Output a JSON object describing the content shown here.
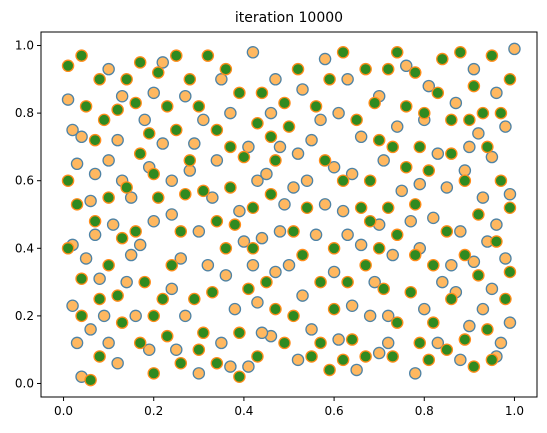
{
  "chart_data": {
    "type": "scatter",
    "title": "iteration 10000",
    "xlabel": "",
    "ylabel": "",
    "xlim": [
      -0.05,
      1.05
    ],
    "ylim": [
      -0.04,
      1.04
    ],
    "xticks": [
      "0.0",
      "0.2",
      "0.4",
      "0.6",
      "0.8",
      "1.0"
    ],
    "xtick_values": [
      0.0,
      0.2,
      0.4,
      0.6,
      0.8,
      1.0
    ],
    "yticks": [
      "0.0",
      "0.2",
      "0.4",
      "0.6",
      "0.8",
      "1.0"
    ],
    "ytick_values": [
      0.0,
      0.2,
      0.4,
      0.6,
      0.8,
      1.0
    ],
    "grid": false,
    "legend": "none",
    "colors": {
      "orange_fill": "#ffb860",
      "orange_edge": "#4f83a5",
      "green_fill": "#2f8a20",
      "green_edge": "#ff8c1a"
    },
    "series": [
      {
        "values": [
          [
            0.01,
            0.84
          ],
          [
            0.02,
            0.75
          ],
          [
            0.04,
            0.73
          ],
          [
            0.03,
            0.65
          ],
          [
            0.07,
            0.62
          ],
          [
            0.1,
            0.66
          ],
          [
            0.13,
            0.6
          ],
          [
            0.06,
            0.54
          ],
          [
            0.11,
            0.47
          ],
          [
            0.02,
            0.41
          ],
          [
            0.05,
            0.37
          ],
          [
            0.08,
            0.31
          ],
          [
            0.02,
            0.23
          ],
          [
            0.06,
            0.16
          ],
          [
            0.1,
            0.12
          ],
          [
            0.04,
            0.02
          ],
          [
            0.12,
            0.06
          ],
          [
            0.16,
            0.2
          ],
          [
            0.19,
            0.1
          ],
          [
            0.14,
            0.3
          ],
          [
            0.17,
            0.41
          ],
          [
            0.2,
            0.48
          ],
          [
            0.15,
            0.55
          ],
          [
            0.19,
            0.64
          ],
          [
            0.24,
            0.6
          ],
          [
            0.22,
            0.71
          ],
          [
            0.18,
            0.78
          ],
          [
            0.13,
            0.85
          ],
          [
            0.1,
            0.93
          ],
          [
            0.22,
            0.95
          ],
          [
            0.27,
            0.85
          ],
          [
            0.31,
            0.78
          ],
          [
            0.28,
            0.63
          ],
          [
            0.33,
            0.55
          ],
          [
            0.3,
            0.45
          ],
          [
            0.26,
            0.37
          ],
          [
            0.24,
            0.28
          ],
          [
            0.27,
            0.2
          ],
          [
            0.25,
            0.1
          ],
          [
            0.3,
            0.03
          ],
          [
            0.35,
            0.12
          ],
          [
            0.38,
            0.22
          ],
          [
            0.36,
            0.32
          ],
          [
            0.4,
            0.42
          ],
          [
            0.39,
            0.51
          ],
          [
            0.43,
            0.6
          ],
          [
            0.41,
            0.7
          ],
          [
            0.37,
            0.8
          ],
          [
            0.35,
            0.9
          ],
          [
            0.42,
            0.98
          ],
          [
            0.47,
            0.9
          ],
          [
            0.46,
            0.8
          ],
          [
            0.48,
            0.7
          ],
          [
            0.45,
            0.62
          ],
          [
            0.49,
            0.53
          ],
          [
            0.44,
            0.43
          ],
          [
            0.47,
            0.33
          ],
          [
            0.43,
            0.24
          ],
          [
            0.46,
            0.14
          ],
          [
            0.41,
            0.05
          ],
          [
            0.52,
            0.07
          ],
          [
            0.55,
            0.16
          ],
          [
            0.53,
            0.26
          ],
          [
            0.5,
            0.35
          ],
          [
            0.56,
            0.44
          ],
          [
            0.58,
            0.53
          ],
          [
            0.54,
            0.6
          ],
          [
            0.52,
            0.68
          ],
          [
            0.57,
            0.78
          ],
          [
            0.53,
            0.87
          ],
          [
            0.58,
            0.96
          ],
          [
            0.63,
            0.9
          ],
          [
            0.61,
            0.8
          ],
          [
            0.66,
            0.73
          ],
          [
            0.64,
            0.62
          ],
          [
            0.62,
            0.51
          ],
          [
            0.66,
            0.41
          ],
          [
            0.6,
            0.33
          ],
          [
            0.64,
            0.23
          ],
          [
            0.61,
            0.13
          ],
          [
            0.65,
            0.04
          ],
          [
            0.7,
            0.09
          ],
          [
            0.72,
            0.2
          ],
          [
            0.69,
            0.3
          ],
          [
            0.73,
            0.38
          ],
          [
            0.7,
            0.47
          ],
          [
            0.75,
            0.57
          ],
          [
            0.71,
            0.66
          ],
          [
            0.74,
            0.76
          ],
          [
            0.7,
            0.85
          ],
          [
            0.76,
            0.94
          ],
          [
            0.81,
            0.88
          ],
          [
            0.8,
            0.78
          ],
          [
            0.83,
            0.68
          ],
          [
            0.79,
            0.59
          ],
          [
            0.82,
            0.49
          ],
          [
            0.79,
            0.4
          ],
          [
            0.84,
            0.3
          ],
          [
            0.8,
            0.22
          ],
          [
            0.83,
            0.12
          ],
          [
            0.78,
            0.03
          ],
          [
            0.88,
            0.07
          ],
          [
            0.9,
            0.17
          ],
          [
            0.87,
            0.27
          ],
          [
            0.91,
            0.36
          ],
          [
            0.88,
            0.45
          ],
          [
            0.93,
            0.55
          ],
          [
            0.89,
            0.63
          ],
          [
            0.92,
            0.74
          ],
          [
            0.87,
            0.83
          ],
          [
            0.91,
            0.93
          ],
          [
            0.96,
            0.86
          ],
          [
            0.98,
            0.76
          ],
          [
            0.95,
            0.67
          ],
          [
            0.99,
            0.56
          ],
          [
            0.96,
            0.47
          ],
          [
            0.98,
            0.37
          ],
          [
            0.95,
            0.28
          ],
          [
            0.99,
            0.18
          ],
          [
            0.96,
            0.08
          ],
          [
            1.0,
            0.99
          ],
          [
            0.03,
            0.12
          ],
          [
            0.09,
            0.2
          ],
          [
            0.07,
            0.44
          ],
          [
            0.15,
            0.38
          ],
          [
            0.12,
            0.72
          ],
          [
            0.2,
            0.86
          ],
          [
            0.24,
            0.5
          ],
          [
            0.29,
            0.71
          ],
          [
            0.34,
            0.66
          ],
          [
            0.32,
            0.35
          ],
          [
            0.37,
            0.05
          ],
          [
            0.44,
            0.15
          ],
          [
            0.42,
            0.35
          ],
          [
            0.48,
            0.45
          ],
          [
            0.51,
            0.58
          ],
          [
            0.55,
            0.72
          ],
          [
            0.6,
            0.64
          ],
          [
            0.63,
            0.44
          ],
          [
            0.68,
            0.2
          ],
          [
            0.72,
            0.12
          ],
          [
            0.77,
            0.48
          ],
          [
            0.85,
            0.58
          ],
          [
            0.9,
            0.7
          ],
          [
            0.94,
            0.42
          ],
          [
            0.86,
            0.35
          ],
          [
            0.93,
            0.22
          ],
          [
            0.97,
            0.12
          ]
        ]
      },
      {
        "values": [
          [
            0.01,
            0.94
          ],
          [
            0.04,
            0.97
          ],
          [
            0.08,
            0.9
          ],
          [
            0.05,
            0.82
          ],
          [
            0.09,
            0.78
          ],
          [
            0.14,
            0.9
          ],
          [
            0.17,
            0.95
          ],
          [
            0.21,
            0.92
          ],
          [
            0.25,
            0.97
          ],
          [
            0.23,
            0.82
          ],
          [
            0.19,
            0.74
          ],
          [
            0.17,
            0.68
          ],
          [
            0.14,
            0.58
          ],
          [
            0.01,
            0.6
          ],
          [
            0.03,
            0.53
          ],
          [
            0.07,
            0.48
          ],
          [
            0.01,
            0.4
          ],
          [
            0.04,
            0.31
          ],
          [
            0.08,
            0.25
          ],
          [
            0.1,
            0.35
          ],
          [
            0.13,
            0.43
          ],
          [
            0.18,
            0.3
          ],
          [
            0.2,
            0.2
          ],
          [
            0.17,
            0.12
          ],
          [
            0.13,
            0.18
          ],
          [
            0.08,
            0.08
          ],
          [
            0.2,
            0.03
          ],
          [
            0.23,
            0.14
          ],
          [
            0.29,
            0.25
          ],
          [
            0.26,
            0.45
          ],
          [
            0.21,
            0.55
          ],
          [
            0.28,
            0.66
          ],
          [
            0.31,
            0.57
          ],
          [
            0.34,
            0.48
          ],
          [
            0.36,
            0.4
          ],
          [
            0.33,
            0.27
          ],
          [
            0.31,
            0.15
          ],
          [
            0.34,
            0.06
          ],
          [
            0.39,
            0.15
          ],
          [
            0.41,
            0.28
          ],
          [
            0.37,
            0.58
          ],
          [
            0.4,
            0.67
          ],
          [
            0.43,
            0.77
          ],
          [
            0.39,
            0.86
          ],
          [
            0.32,
            0.97
          ],
          [
            0.36,
            0.93
          ],
          [
            0.44,
            0.86
          ],
          [
            0.49,
            0.83
          ],
          [
            0.52,
            0.93
          ],
          [
            0.56,
            0.82
          ],
          [
            0.59,
            0.9
          ],
          [
            0.62,
            0.98
          ],
          [
            0.67,
            0.93
          ],
          [
            0.69,
            0.83
          ],
          [
            0.72,
            0.93
          ],
          [
            0.74,
            0.98
          ],
          [
            0.78,
            0.92
          ],
          [
            0.84,
            0.96
          ],
          [
            0.88,
            0.98
          ],
          [
            0.91,
            0.88
          ],
          [
            0.95,
            0.97
          ],
          [
            0.99,
            0.9
          ],
          [
            0.97,
            0.8
          ],
          [
            0.93,
            0.8
          ],
          [
            0.86,
            0.78
          ],
          [
            0.83,
            0.86
          ],
          [
            0.79,
            0.7
          ],
          [
            0.76,
            0.64
          ],
          [
            0.73,
            0.7
          ],
          [
            0.68,
            0.6
          ],
          [
            0.66,
            0.52
          ],
          [
            0.7,
            0.4
          ],
          [
            0.74,
            0.44
          ],
          [
            0.78,
            0.53
          ],
          [
            0.81,
            0.63
          ],
          [
            0.85,
            0.45
          ],
          [
            0.89,
            0.6
          ],
          [
            0.92,
            0.5
          ],
          [
            0.97,
            0.6
          ],
          [
            0.99,
            0.52
          ],
          [
            0.96,
            0.42
          ],
          [
            0.92,
            0.32
          ],
          [
            0.89,
            0.38
          ],
          [
            0.86,
            0.25
          ],
          [
            0.82,
            0.18
          ],
          [
            0.85,
            0.1
          ],
          [
            0.89,
            0.13
          ],
          [
            0.94,
            0.16
          ],
          [
            0.98,
            0.25
          ],
          [
            0.99,
            0.33
          ],
          [
            0.77,
            0.27
          ],
          [
            0.74,
            0.18
          ],
          [
            0.71,
            0.28
          ],
          [
            0.67,
            0.35
          ],
          [
            0.63,
            0.3
          ],
          [
            0.6,
            0.22
          ],
          [
            0.57,
            0.12
          ],
          [
            0.59,
            0.04
          ],
          [
            0.55,
            0.08
          ],
          [
            0.51,
            0.2
          ],
          [
            0.49,
            0.12
          ],
          [
            0.47,
            0.22
          ],
          [
            0.53,
            0.38
          ],
          [
            0.57,
            0.3
          ],
          [
            0.6,
            0.4
          ],
          [
            0.62,
            0.6
          ],
          [
            0.58,
            0.66
          ],
          [
            0.54,
            0.52
          ],
          [
            0.51,
            0.45
          ],
          [
            0.46,
            0.56
          ],
          [
            0.47,
            0.66
          ],
          [
            0.42,
            0.52
          ],
          [
            0.38,
            0.47
          ],
          [
            0.42,
            0.4
          ],
          [
            0.45,
            0.3
          ],
          [
            0.43,
            0.08
          ],
          [
            0.39,
            0.02
          ],
          [
            0.3,
            0.1
          ],
          [
            0.26,
            0.06
          ],
          [
            0.22,
            0.25
          ],
          [
            0.24,
            0.35
          ],
          [
            0.27,
            0.56
          ],
          [
            0.25,
            0.75
          ],
          [
            0.3,
            0.82
          ],
          [
            0.34,
            0.75
          ],
          [
            0.37,
            0.7
          ],
          [
            0.46,
            0.73
          ],
          [
            0.5,
            0.76
          ],
          [
            0.65,
            0.78
          ],
          [
            0.7,
            0.72
          ],
          [
            0.76,
            0.82
          ],
          [
            0.8,
            0.8
          ],
          [
            0.86,
            0.68
          ],
          [
            0.9,
            0.78
          ],
          [
            0.94,
            0.7
          ],
          [
            0.82,
            0.35
          ],
          [
            0.78,
            0.38
          ],
          [
            0.72,
            0.52
          ],
          [
            0.68,
            0.48
          ],
          [
            0.64,
            0.13
          ],
          [
            0.67,
            0.08
          ],
          [
            0.62,
            0.07
          ],
          [
            0.73,
            0.08
          ],
          [
            0.79,
            0.12
          ],
          [
            0.81,
            0.07
          ],
          [
            0.91,
            0.05
          ],
          [
            0.95,
            0.07
          ],
          [
            0.12,
            0.81
          ],
          [
            0.07,
            0.72
          ],
          [
            0.1,
            0.55
          ],
          [
            0.12,
            0.26
          ],
          [
            0.04,
            0.2
          ],
          [
            0.06,
            0.01
          ],
          [
            0.16,
            0.45
          ],
          [
            0.2,
            0.62
          ],
          [
            0.16,
            0.83
          ],
          [
            0.28,
            0.9
          ]
        ]
      }
    ]
  }
}
